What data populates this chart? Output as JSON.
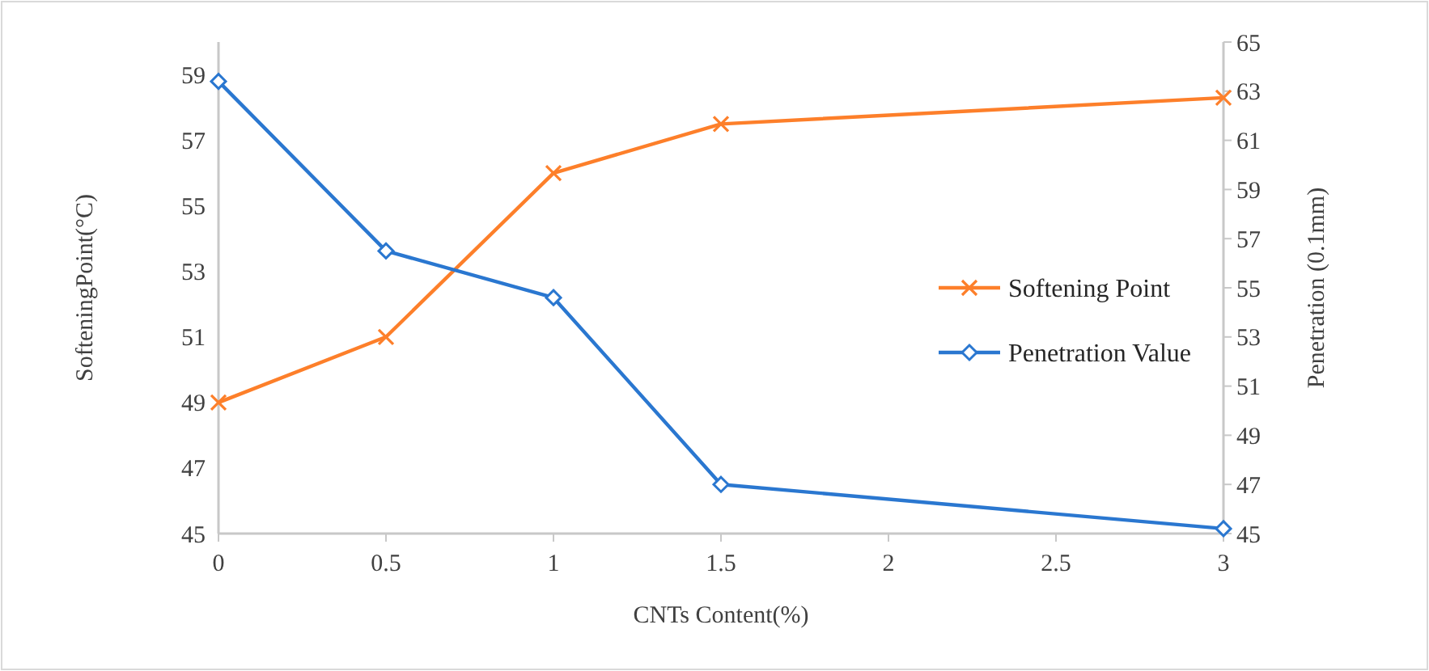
{
  "chart_data": {
    "type": "line",
    "xlabel": "CNTs Content(%)",
    "ylabel": "SofteningPoint(°C)",
    "y2label": "Penetration (0.1mm)",
    "x": [
      0,
      0.5,
      1,
      1.5,
      3
    ],
    "xlim": [
      0,
      3
    ],
    "xticks": [
      0,
      0.5,
      1,
      1.5,
      2,
      2.5,
      3
    ],
    "ylim": [
      45,
      60
    ],
    "yticks": [
      45,
      47,
      49,
      51,
      53,
      55,
      57,
      59
    ],
    "y2lim": [
      45,
      65
    ],
    "y2ticks": [
      45,
      47,
      49,
      51,
      53,
      55,
      57,
      59,
      61,
      63,
      65
    ],
    "grid": false,
    "legend": "right",
    "series": [
      {
        "name": "Softening Point",
        "color": "#fd7f2a",
        "marker": "cross",
        "values": [
          49,
          51,
          56,
          57.5,
          58.3
        ]
      },
      {
        "name": "Penetration Value",
        "color": "#2a77d0",
        "marker": "diamond",
        "axis": "y2",
        "values": [
          63.4,
          56.5,
          54.6,
          47.0,
          45.2
        ]
      }
    ]
  }
}
